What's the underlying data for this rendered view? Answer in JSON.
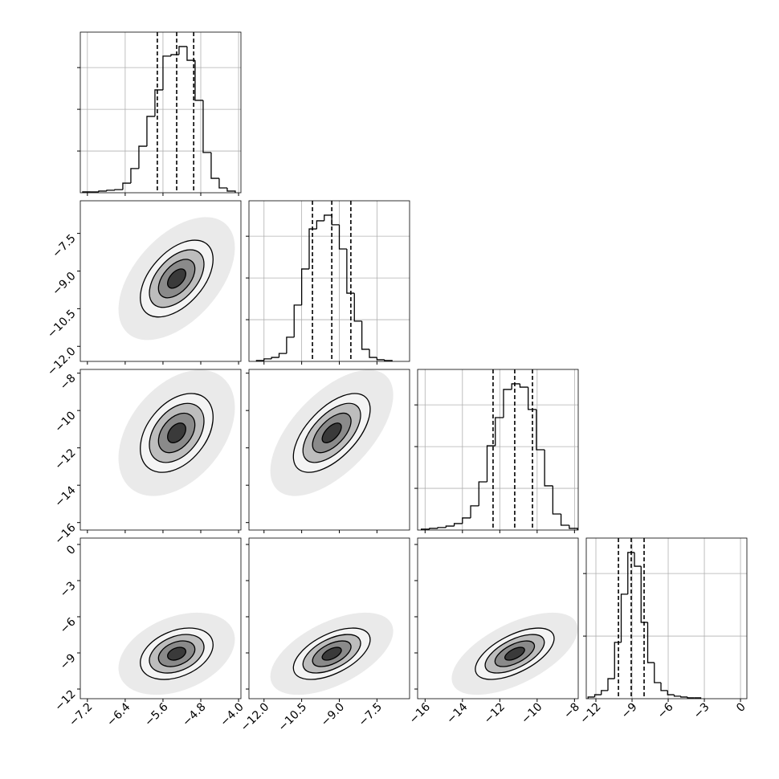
{
  "chart_data": {
    "type": "corner",
    "levels": [
      0.5,
      1,
      1.5,
      2
    ],
    "params": [
      {
        "lim": [
          -7.35,
          -3.95
        ],
        "ticks": [
          {
            "value": -7.2,
            "label": "−7.2"
          },
          {
            "value": -6.4,
            "label": "−6.4"
          },
          {
            "value": -5.6,
            "label": "−5.6"
          },
          {
            "value": -4.8,
            "label": "−4.8"
          },
          {
            "value": -4.0,
            "label": "−4.0"
          }
        ],
        "quantiles": [
          -5.72,
          -5.31,
          -4.95
        ],
        "hist": {
          "bins": [
            -7.3,
            -7.13,
            -6.96,
            -6.79,
            -6.62,
            -6.45,
            -6.28,
            -6.11,
            -5.94,
            -5.77,
            -5.6,
            -5.43,
            -5.26,
            -5.09,
            -4.92,
            -4.75,
            -4.58,
            -4.41,
            -4.24,
            -4.07
          ],
          "counts": [
            4,
            4,
            8,
            12,
            15,
            46,
            116,
            223,
            366,
            493,
            655,
            662,
            701,
            635,
            443,
            193,
            69,
            23,
            8
          ],
          "ylim": [
            0,
            770
          ],
          "yticks": [
            200,
            400,
            600
          ]
        }
      },
      {
        "lim": [
          -12.6,
          -6.2
        ],
        "ticks": [
          {
            "value": -12.0,
            "label": "−12.0"
          },
          {
            "value": -10.5,
            "label": "−10.5"
          },
          {
            "value": -9.0,
            "label": "−9.0"
          },
          {
            "value": -7.5,
            "label": "−7.5"
          }
        ],
        "quantiles": [
          -10.07,
          -9.3,
          -8.54
        ],
        "hist": {
          "bins": [
            -12.3,
            -12.0,
            -11.7,
            -11.4,
            -11.1,
            -10.8,
            -10.5,
            -10.2,
            -9.9,
            -9.6,
            -9.3,
            -9.0,
            -8.7,
            -8.4,
            -8.1,
            -7.8,
            -7.5,
            -7.2,
            -6.9
          ],
          "counts": [
            4,
            12,
            19,
            38,
            116,
            270,
            443,
            635,
            674,
            701,
            655,
            539,
            327,
            193,
            58,
            19,
            8,
            4
          ],
          "ylim": [
            0,
            770
          ],
          "yticks": [
            200,
            400,
            600
          ]
        }
      },
      {
        "lim": [
          -16.4,
          -7.8
        ],
        "ticks": [
          {
            "value": -16,
            "label": "−16"
          },
          {
            "value": -14,
            "label": "−14"
          },
          {
            "value": -12,
            "label": "−12"
          },
          {
            "value": -10,
            "label": "−10"
          },
          {
            "value": -8,
            "label": "−8"
          }
        ],
        "quantiles": [
          -12.36,
          -11.2,
          -10.25
        ],
        "hist": {
          "bins": [
            -16.2,
            -15.76,
            -15.32,
            -14.88,
            -14.44,
            -14.0,
            -13.56,
            -13.12,
            -12.68,
            -12.24,
            -11.8,
            -11.36,
            -10.92,
            -10.48,
            -10.04,
            -9.6,
            -9.16,
            -8.72,
            -8.28,
            -7.84
          ],
          "counts": [
            4,
            8,
            12,
            19,
            31,
            58,
            116,
            231,
            404,
            539,
            674,
            701,
            685,
            578,
            385,
            212,
            77,
            23,
            8
          ],
          "ylim": [
            0,
            770
          ],
          "yticks": [
            200,
            400,
            600
          ]
        }
      },
      {
        "lim": [
          -12.8,
          0.53
        ],
        "ticks": [
          {
            "value": -12,
            "label": "−12"
          },
          {
            "value": -9,
            "label": "−9"
          },
          {
            "value": -6,
            "label": "−6"
          },
          {
            "value": -3,
            "label": "−3"
          },
          0
        ],
        "quantiles": [
          -10.13,
          -9.07,
          -8.0
        ],
        "hist": {
          "bins": [
            -12.65,
            -12.1,
            -11.55,
            -11.0,
            -10.45,
            -9.9,
            -9.35,
            -8.8,
            -8.25,
            -7.7,
            -7.15,
            -6.6,
            -6.05,
            -5.5,
            -4.95,
            -4.4,
            -3.85,
            -3.3
          ],
          "counts": [
            8,
            19,
            39,
            96,
            270,
            501,
            701,
            635,
            366,
            173,
            77,
            39,
            19,
            12,
            8,
            4,
            4
          ],
          "ylim": [
            0,
            770
          ],
          "yticks": [
            300,
            600
          ]
        }
      }
    ],
    "pairs": [
      {
        "corr": 0.5
      },
      {
        "corr": 0.4
      },
      {
        "corr": 0.6
      },
      {
        "corr": 0.35
      },
      {
        "corr": 0.55
      },
      {
        "corr": 0.6
      }
    ]
  }
}
